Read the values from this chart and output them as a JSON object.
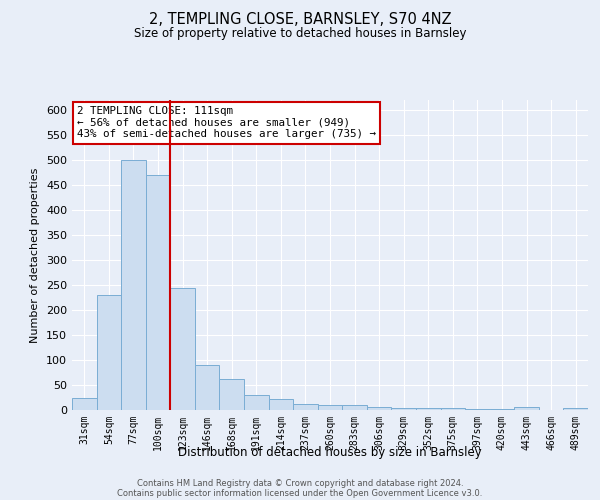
{
  "title": "2, TEMPLING CLOSE, BARNSLEY, S70 4NZ",
  "subtitle": "Size of property relative to detached houses in Barnsley",
  "xlabel": "Distribution of detached houses by size in Barnsley",
  "ylabel": "Number of detached properties",
  "footnote1": "Contains HM Land Registry data © Crown copyright and database right 2024.",
  "footnote2": "Contains public sector information licensed under the Open Government Licence v3.0.",
  "annotation_line1": "2 TEMPLING CLOSE: 111sqm",
  "annotation_line2": "← 56% of detached houses are smaller (949)",
  "annotation_line3": "43% of semi-detached houses are larger (735) →",
  "bar_labels": [
    "31sqm",
    "54sqm",
    "77sqm",
    "100sqm",
    "123sqm",
    "146sqm",
    "168sqm",
    "191sqm",
    "214sqm",
    "237sqm",
    "260sqm",
    "283sqm",
    "306sqm",
    "329sqm",
    "352sqm",
    "375sqm",
    "397sqm",
    "420sqm",
    "443sqm",
    "466sqm",
    "489sqm"
  ],
  "bar_values": [
    25,
    230,
    500,
    470,
    245,
    90,
    62,
    30,
    22,
    13,
    11,
    11,
    7,
    5,
    4,
    4,
    3,
    3,
    7,
    1,
    5
  ],
  "bar_color": "#ccddf0",
  "bar_edge_color": "#7aadd4",
  "vline_color": "#cc0000",
  "vline_position": 3.5,
  "ylim": [
    0,
    620
  ],
  "yticks": [
    0,
    50,
    100,
    150,
    200,
    250,
    300,
    350,
    400,
    450,
    500,
    550,
    600
  ],
  "bg_color": "#e8eef8",
  "plot_bg_color": "#e8eef8",
  "grid_color": "#ffffff",
  "annotation_box_color": "#ffffff",
  "annotation_box_edge": "#cc0000"
}
